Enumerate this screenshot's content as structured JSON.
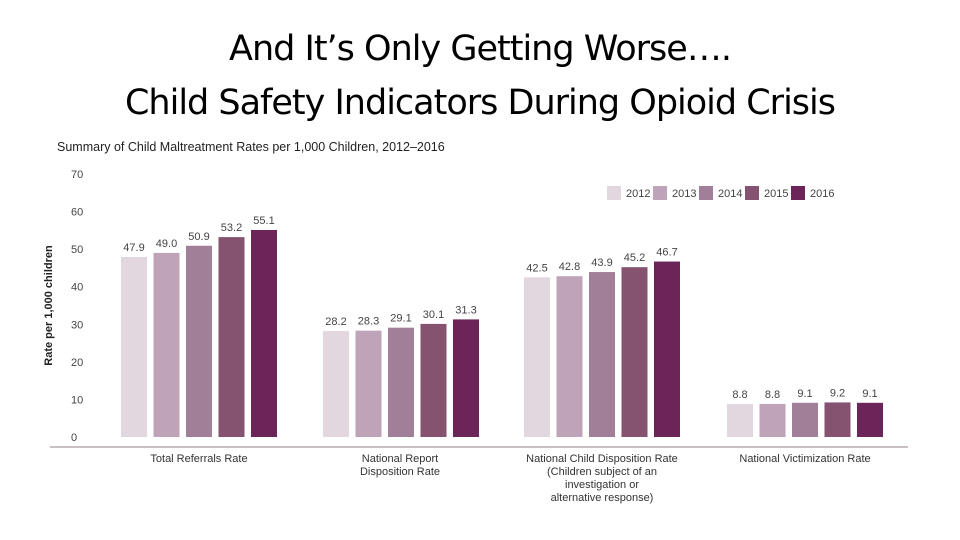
{
  "slide": {
    "title_line1": "And It’s Only Getting Worse….",
    "title_line2": "Child Safety Indicators During Opioid Crisis"
  },
  "chart_data": {
    "type": "bar",
    "title": "Summary of Child Maltreatment Rates per 1,000 Children, 2012–2016",
    "ylabel": "Rate per 1,000 children",
    "xlabel": "",
    "ylim": [
      0,
      70
    ],
    "yticks": [
      0,
      10,
      20,
      30,
      40,
      50,
      60,
      70
    ],
    "grid": false,
    "legend_position": "top-right",
    "categories": [
      [
        "Total Referrals Rate"
      ],
      [
        "National Report",
        "Disposition Rate"
      ],
      [
        "National Child Disposition Rate",
        "(Children subject of an",
        "investigation or",
        "alternative response)"
      ],
      [
        "National Victimization Rate"
      ]
    ],
    "series": [
      {
        "name": "2012",
        "color": "#e2d6df",
        "values": [
          47.9,
          28.2,
          42.5,
          8.8
        ]
      },
      {
        "name": "2013",
        "color": "#bfa3b8",
        "values": [
          49.0,
          28.3,
          42.8,
          8.8
        ]
      },
      {
        "name": "2014",
        "color": "#a17f99",
        "values": [
          50.9,
          29.1,
          43.9,
          9.1
        ]
      },
      {
        "name": "2015",
        "color": "#85526f",
        "values": [
          53.2,
          30.1,
          45.2,
          9.2
        ]
      },
      {
        "name": "2016",
        "color": "#6b2558",
        "values": [
          55.1,
          31.3,
          46.7,
          9.1
        ]
      }
    ],
    "value_labels": [
      [
        "47.9",
        "28.2",
        "42.5",
        "8.8"
      ],
      [
        "49.0",
        "28.3",
        "42.8",
        "8.8"
      ],
      [
        "50.9",
        "29.1",
        "43.9",
        "9.1"
      ],
      [
        "53.2",
        "30.1",
        "45.2",
        "9.2"
      ],
      [
        "55.1",
        "31.3",
        "46.7",
        "9.1"
      ]
    ]
  }
}
